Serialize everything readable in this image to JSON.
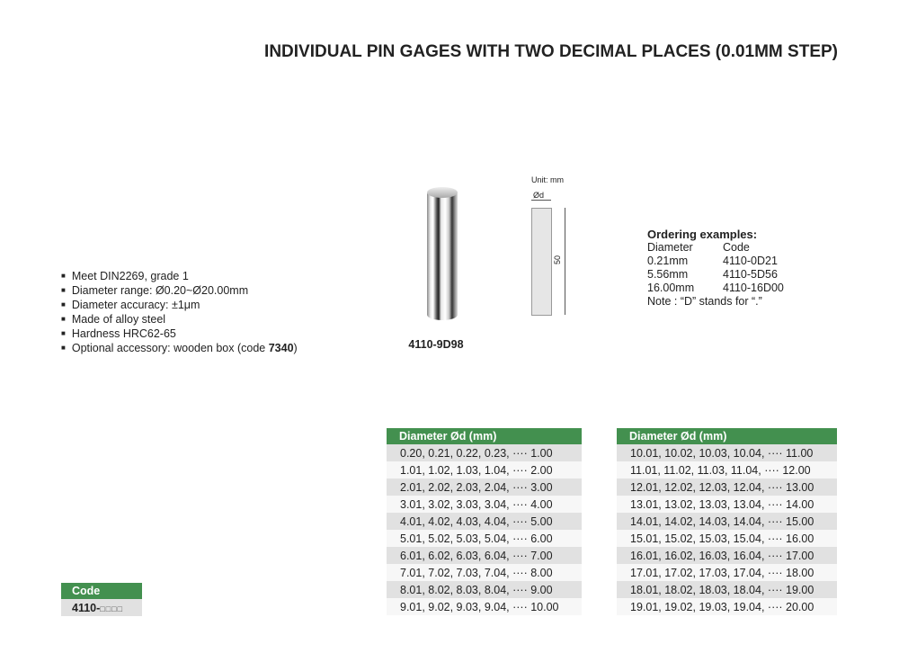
{
  "title": "INDIVIDUAL PIN GAGES WITH TWO DECIMAL PLACES (0.01MM STEP)",
  "features": [
    "Meet DIN2269, grade 1",
    "Diameter range: Ø0.20~Ø20.00mm",
    "Diameter accuracy: ±1μm",
    "Made of alloy steel",
    "Hardness HRC62-65"
  ],
  "accessory": {
    "text": "Optional accessory: wooden box (code ",
    "code": "7340",
    "close": ")"
  },
  "product": {
    "model": "4110-9D98"
  },
  "drawing": {
    "unit": "Unit: mm",
    "diameter": "Ød",
    "length": "50"
  },
  "ordering": {
    "title": "Ordering examples:",
    "headers": [
      "Diameter",
      "Code"
    ],
    "rows": [
      [
        "0.21mm",
        "4110-0D21"
      ],
      [
        "5.56mm",
        "4110-5D56"
      ],
      [
        "16.00mm",
        "4110-16D00"
      ]
    ],
    "note": "Note : “D”  stands for “.”"
  },
  "table_left": {
    "header": "Diameter Ød (mm)",
    "rows": [
      "0.20, 0.21, 0.22, 0.23, ···· 1.00",
      "1.01, 1.02, 1.03, 1.04, ···· 2.00",
      "2.01, 2.02, 2.03, 2.04, ···· 3.00",
      "3.01, 3.02, 3.03, 3.04, ···· 4.00",
      "4.01, 4.02, 4.03, 4.04, ···· 5.00",
      "5.01, 5.02, 5.03, 5.04, ···· 6.00",
      "6.01, 6.02, 6.03, 6.04, ···· 7.00",
      "7.01, 7.02, 7.03, 7.04, ···· 8.00",
      "8.01, 8.02, 8.03, 8.04, ···· 9.00",
      "9.01, 9.02, 9.03, 9.04, ···· 10.00"
    ]
  },
  "table_right": {
    "header": "Diameter Ød (mm)",
    "rows": [
      "10.01, 10.02, 10.03, 10.04, ···· 11.00",
      "11.01, 11.02,  11.03, 11.04, ···· 12.00",
      "12.01, 12.02, 12.03, 12.04, ···· 13.00",
      "13.01, 13.02, 13.03, 13.04, ···· 14.00",
      "14.01, 14.02, 14.03, 14.04, ···· 15.00",
      "15.01, 15.02, 15.03, 15.04, ···· 16.00",
      "16.01, 16.02, 16.03, 16.04, ···· 17.00",
      "17.01, 17.02, 17.03, 17.04, ···· 18.00",
      "18.01, 18.02, 18.03, 18.04, ···· 19.00",
      "19.01, 19.02, 19.03, 19.04, ···· 20.00"
    ]
  },
  "code_table": {
    "header": "Code",
    "prefix": "4110-",
    "boxes": "□□□□"
  },
  "colors": {
    "header_green": "#43904f",
    "row_gray": "#e1e1e1"
  }
}
